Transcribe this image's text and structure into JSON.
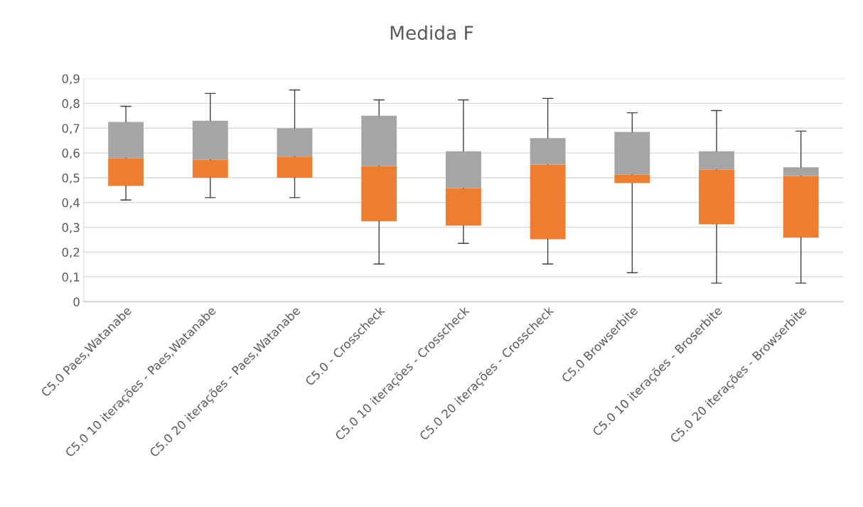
{
  "chart_data": {
    "type": "box",
    "title": "Medida F",
    "categories": [
      "C5.0 Paes,Watanabe",
      "C5.0 10 iterações - Paes,Watanabe",
      "C5.0 20 iterações - Paes,Watanabe",
      "C5.0 - Crosscheck",
      "C5.0 10 iterações - Crosscheck",
      "C5.0 20 iterações - Crosscheck",
      "C5.0 Browserbite",
      "C5.0 10 iterações - Broserbite",
      "C5.0 20 iterações - Browserbite"
    ],
    "series": [
      {
        "color": "#ed7d31",
        "boxes": [
          {
            "low": 0.41,
            "q1": 0.467,
            "median": 0.579,
            "q3": 0.725,
            "high": 0.788
          },
          {
            "low": 0.42,
            "q1": 0.5,
            "median": 0.573,
            "q3": 0.73,
            "high": 0.84
          },
          {
            "low": 0.42,
            "q1": 0.5,
            "median": 0.585,
            "q3": 0.7,
            "high": 0.854
          },
          {
            "low": 0.152,
            "q1": 0.324,
            "median": 0.547,
            "q3": 0.75,
            "high": 0.814
          },
          {
            "low": 0.235,
            "q1": 0.307,
            "median": 0.458,
            "q3": 0.607,
            "high": 0.814
          },
          {
            "low": 0.152,
            "q1": 0.252,
            "median": 0.553,
            "q3": 0.66,
            "high": 0.82
          },
          {
            "low": 0.117,
            "q1": 0.478,
            "median": 0.513,
            "q3": 0.685,
            "high": 0.762
          },
          {
            "low": 0.075,
            "q1": 0.312,
            "median": 0.533,
            "q3": 0.607,
            "high": 0.771
          },
          {
            "low": 0.075,
            "q1": 0.258,
            "median": 0.507,
            "q3": 0.542,
            "high": 0.688
          }
        ]
      }
    ],
    "color": "#a5a5a5",
    "ylim": [
      0,
      0.9
    ],
    "yticks": [
      0,
      {
        "value": 0.1,
        "label": "0,1"
      },
      {
        "value": 0.2,
        "label": "0,2"
      },
      {
        "value": 0.3,
        "label": "0,3"
      },
      {
        "value": 0.4,
        "label": "0,4"
      },
      {
        "value": 0.5,
        "label": "0,5"
      },
      {
        "value": 0.6,
        "label": "0,6"
      },
      {
        "value": 0.7,
        "label": "0,7"
      },
      {
        "value": 0.8,
        "label": "0,8"
      },
      {
        "value": 0.9,
        "label": "0,9"
      }
    ],
    "grid": "y"
  }
}
